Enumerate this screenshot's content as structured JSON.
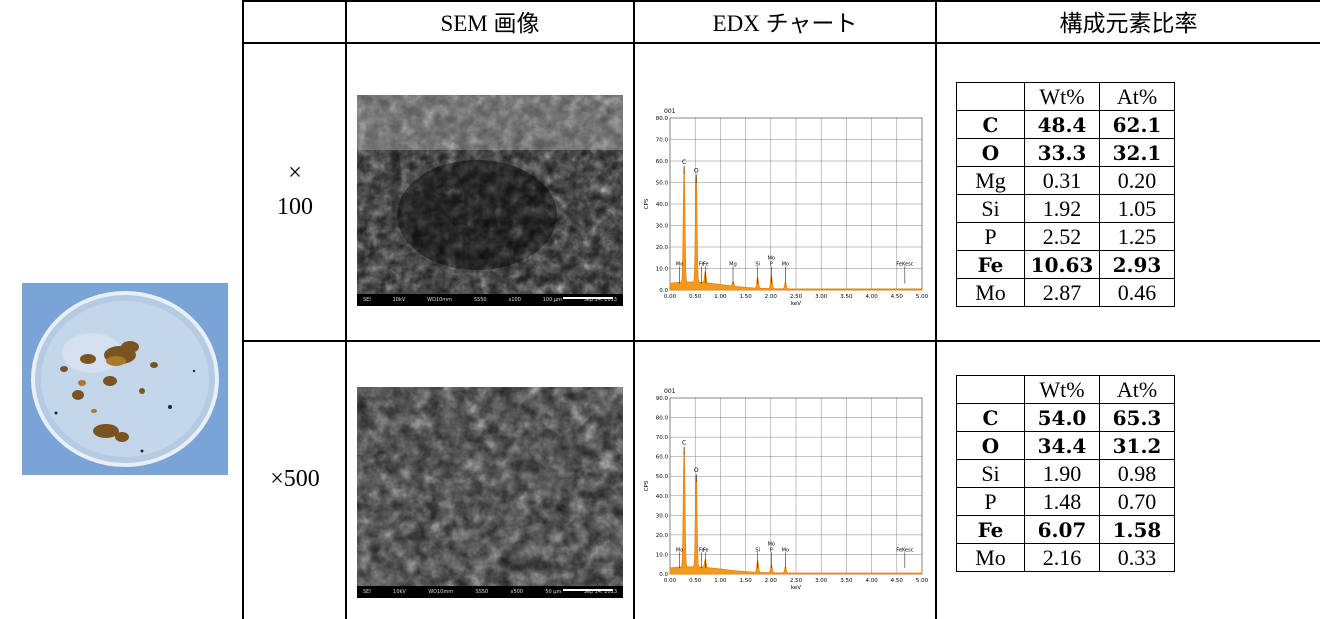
{
  "headers": {
    "sem": "SEM 画像",
    "edx": "EDX チャート",
    "ratio": "構成元素比率"
  },
  "rows": [
    {
      "magnification": [
        "×",
        "100"
      ],
      "sem": {
        "caption": [
          "SEI",
          "10kV",
          "WD10mm",
          "SS50",
          "x100",
          "100 µm",
          "Sep 14, 2013"
        ],
        "sub": "sample"
      },
      "chart_data": {
        "type": "line",
        "title": "001",
        "xlabel": "keV",
        "ylabel": "CPS",
        "xlim": [
          0,
          5
        ],
        "ylim": [
          0,
          80
        ],
        "xticks": [
          "0.00",
          "0.50",
          "1.00",
          "1.50",
          "2.00",
          "2.50",
          "3.00",
          "3.50",
          "4.00",
          "4.50",
          "5.00"
        ],
        "yticks": [
          "0.0",
          "10.0",
          "20.0",
          "30.0",
          "40.0",
          "50.0",
          "60.0",
          "70.0",
          "80.0"
        ],
        "peaks": [
          {
            "x": 0.28,
            "y": 54,
            "label": "C"
          },
          {
            "x": 0.52,
            "y": 50,
            "label": "O"
          },
          {
            "x": 0.7,
            "y": 5,
            "label": "Fe"
          },
          {
            "x": 1.25,
            "y": 2,
            "label": "Mg"
          },
          {
            "x": 1.74,
            "y": 5,
            "label": "Si"
          },
          {
            "x": 2.01,
            "y": 6,
            "label": "P"
          },
          {
            "x": 2.29,
            "y": 3,
            "label": "Mo"
          }
        ],
        "markers": [
          {
            "x": 0.19,
            "label": "Mo"
          },
          {
            "x": 0.63,
            "label": "Fe"
          },
          {
            "x": 0.71,
            "label": "Fe"
          },
          {
            "x": 1.25,
            "label": "Mg"
          },
          {
            "x": 1.74,
            "label": "Si"
          },
          {
            "x": 2.01,
            "label": "P"
          },
          {
            "x": 2.01,
            "label": "Mo"
          },
          {
            "x": 2.29,
            "label": "Mo"
          },
          {
            "x": 4.66,
            "label": "FeKesc"
          }
        ]
      },
      "composition": {
        "columns": [
          "",
          "Wt%",
          "At%"
        ],
        "rows": [
          {
            "element": "C",
            "wt": "48.4",
            "at": "62.1",
            "bold": true
          },
          {
            "element": "O",
            "wt": "33.3",
            "at": "32.1",
            "bold": true
          },
          {
            "element": "Mg",
            "wt": "0.31",
            "at": "0.20",
            "bold": false
          },
          {
            "element": "Si",
            "wt": "1.92",
            "at": "1.05",
            "bold": false
          },
          {
            "element": "P",
            "wt": "2.52",
            "at": "1.25",
            "bold": false
          },
          {
            "element": "Fe",
            "wt": "10.63",
            "at": "2.93",
            "bold": true
          },
          {
            "element": "Mo",
            "wt": "2.87",
            "at": "0.46",
            "bold": false
          }
        ]
      }
    },
    {
      "magnification": [
        "×500"
      ],
      "sem": {
        "caption": [
          "SEI",
          "10kV",
          "WD10mm",
          "SS50",
          "x500",
          "50 µm",
          "Sep 14, 2013"
        ],
        "sub": "sample"
      },
      "chart_data": {
        "type": "line",
        "title": "001",
        "xlabel": "keV",
        "ylabel": "CPS",
        "xlim": [
          0,
          5
        ],
        "ylim": [
          0,
          90
        ],
        "xticks": [
          "0.00",
          "0.50",
          "1.00",
          "1.50",
          "2.00",
          "2.50",
          "3.00",
          "3.50",
          "4.00",
          "4.50",
          "5.00"
        ],
        "yticks": [
          "0.0",
          "10.0",
          "20.0",
          "30.0",
          "40.0",
          "50.0",
          "60.0",
          "70.0",
          "80.0",
          "90.0"
        ],
        "peaks": [
          {
            "x": 0.28,
            "y": 61,
            "label": "C"
          },
          {
            "x": 0.52,
            "y": 47,
            "label": "O"
          },
          {
            "x": 0.7,
            "y": 4,
            "label": "Fe"
          },
          {
            "x": 1.74,
            "y": 6,
            "label": "Si"
          },
          {
            "x": 2.01,
            "y": 4,
            "label": "P"
          },
          {
            "x": 2.29,
            "y": 3,
            "label": "Mo"
          }
        ],
        "markers": [
          {
            "x": 0.19,
            "label": "Mo"
          },
          {
            "x": 0.63,
            "label": "Fe"
          },
          {
            "x": 0.71,
            "label": "Fe"
          },
          {
            "x": 1.74,
            "label": "Si"
          },
          {
            "x": 2.01,
            "label": "P"
          },
          {
            "x": 2.01,
            "label": "Mo"
          },
          {
            "x": 2.29,
            "label": "Mo"
          },
          {
            "x": 4.66,
            "label": "FeKesc"
          }
        ]
      },
      "composition": {
        "columns": [
          "",
          "Wt%",
          "At%"
        ],
        "rows": [
          {
            "element": "C",
            "wt": "54.0",
            "at": "65.3",
            "bold": true
          },
          {
            "element": "O",
            "wt": "34.4",
            "at": "31.2",
            "bold": true
          },
          {
            "element": "Si",
            "wt": "1.90",
            "at": "0.98",
            "bold": false
          },
          {
            "element": "P",
            "wt": "1.48",
            "at": "0.70",
            "bold": false
          },
          {
            "element": "Fe",
            "wt": "6.07",
            "at": "1.58",
            "bold": true
          },
          {
            "element": "Mo",
            "wt": "2.16",
            "at": "0.33",
            "bold": false
          }
        ]
      }
    }
  ]
}
